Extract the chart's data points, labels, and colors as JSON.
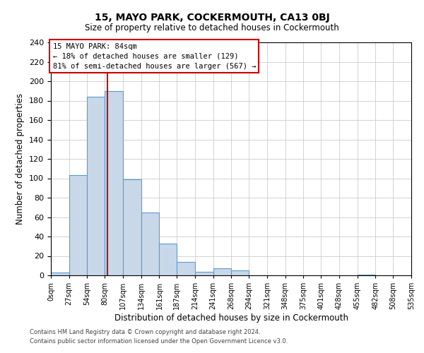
{
  "title": "15, MAYO PARK, COCKERMOUTH, CA13 0BJ",
  "subtitle": "Size of property relative to detached houses in Cockermouth",
  "xlabel": "Distribution of detached houses by size in Cockermouth",
  "ylabel": "Number of detached properties",
  "bin_edges": [
    0,
    27,
    54,
    80,
    107,
    134,
    161,
    187,
    214,
    241,
    268,
    294,
    321,
    348,
    375,
    401,
    428,
    455,
    482,
    508,
    535
  ],
  "counts": [
    3,
    103,
    184,
    190,
    99,
    65,
    33,
    14,
    4,
    7,
    5,
    0,
    0,
    0,
    0,
    0,
    0,
    1,
    0,
    0
  ],
  "bar_color": "#c8d8e8",
  "bar_edge_color": "#5b9bd5",
  "vline_x": 84,
  "vline_color": "#cc0000",
  "annotation_line1": "15 MAYO PARK: 84sqm",
  "annotation_line2": "← 18% of detached houses are smaller (129)",
  "annotation_line3": "81% of semi-detached houses are larger (567) →",
  "box_edge_color": "#cc0000",
  "footer_line1": "Contains HM Land Registry data © Crown copyright and database right 2024.",
  "footer_line2": "Contains public sector information licensed under the Open Government Licence v3.0.",
  "ylim": [
    0,
    240
  ],
  "tick_labels": [
    "0sqm",
    "27sqm",
    "54sqm",
    "80sqm",
    "107sqm",
    "134sqm",
    "161sqm",
    "187sqm",
    "214sqm",
    "241sqm",
    "268sqm",
    "294sqm",
    "321sqm",
    "348sqm",
    "375sqm",
    "401sqm",
    "428sqm",
    "455sqm",
    "482sqm",
    "508sqm",
    "535sqm"
  ],
  "grid_color": "#cccccc",
  "bg_color": "#ffffff"
}
